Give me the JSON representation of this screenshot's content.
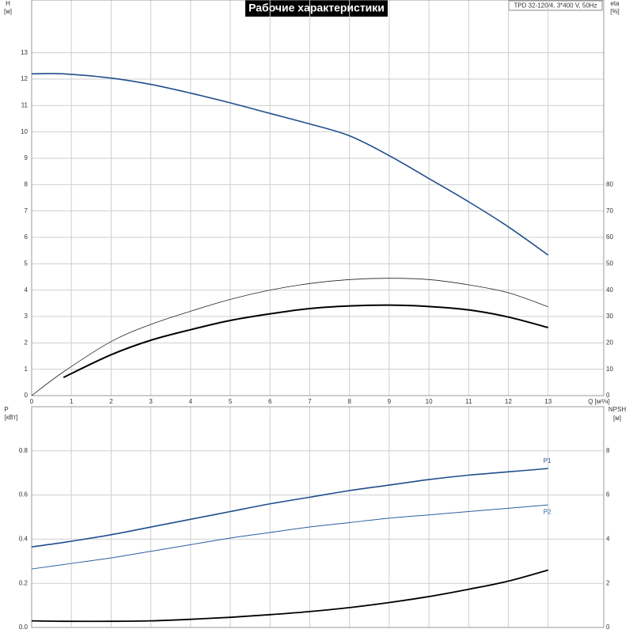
{
  "chart_data": [
    {
      "type": "line",
      "title": "Рабочие характеристики",
      "info": "TPD 32-120/4, 3*400 V, 50Hz",
      "y_label": "H",
      "y_unit": "[м]",
      "y2_label": "eta",
      "y2_unit": "[%]",
      "x_label": "Q [м³/ч]",
      "x": [
        0,
        0.8,
        2,
        3,
        4,
        5,
        6,
        7,
        8,
        9,
        10,
        11,
        12,
        13
      ],
      "xlim": [
        0,
        14.4
      ],
      "xticks": [
        0,
        1,
        2,
        3,
        4,
        5,
        6,
        7,
        8,
        9,
        10,
        11,
        12,
        13
      ],
      "ylim": [
        0,
        15
      ],
      "yticks": [
        0,
        1,
        2,
        3,
        4,
        5,
        6,
        7,
        8,
        9,
        10,
        11,
        12,
        13
      ],
      "y2lim": [
        0,
        150
      ],
      "y2ticks": [
        0,
        10,
        20,
        30,
        40,
        50,
        60,
        70,
        80
      ],
      "grid": true,
      "series": [
        {
          "color": "#1f4e8c",
          "values": [
            12.2,
            12.2,
            12.04,
            11.8,
            11.47,
            11.1,
            10.7,
            10.3,
            9.85,
            9.1,
            8.23,
            7.35,
            6.4,
            5.33
          ]
        },
        {
          "color": "#222222",
          "axis": "y2",
          "values": [
            0,
            9,
            20.5,
            27,
            32,
            36.5,
            40,
            42.5,
            44,
            44.5,
            44,
            42,
            39,
            33.7
          ]
        },
        {
          "color": "#000000",
          "axis": "y2",
          "values": [
            null,
            6.9,
            15.5,
            21,
            25,
            28.5,
            31,
            33,
            34,
            34.3,
            33.8,
            32.5,
            29.8,
            25.8
          ]
        }
      ]
    },
    {
      "type": "line",
      "y_label": "P",
      "y_unit": "[кВт]",
      "y2_label": "NPSH",
      "y2_unit": "[м]",
      "x": [
        0,
        0.8,
        2,
        3,
        4,
        5,
        6,
        7,
        8,
        9,
        10,
        11,
        12,
        13
      ],
      "xlim": [
        0,
        14.4
      ],
      "ylim": [
        0,
        1.0
      ],
      "yticks": [
        {
          "value": 0,
          "label": "0.0"
        },
        0.2,
        0.4,
        0.6,
        0.8
      ],
      "y2lim": [
        0,
        10
      ],
      "y2ticks": [
        0,
        2,
        4,
        6,
        8
      ],
      "grid": true,
      "series": [
        {
          "name": "P1",
          "color": "#1f4e8c",
          "values": [
            0.365,
            0.385,
            0.42,
            0.455,
            0.49,
            0.525,
            0.56,
            0.59,
            0.62,
            0.645,
            0.67,
            0.69,
            0.705,
            0.72
          ]
        },
        {
          "name": "P2",
          "color": "#2a5f9e",
          "values": [
            0.265,
            0.285,
            0.315,
            0.345,
            0.375,
            0.405,
            0.43,
            0.455,
            0.475,
            0.495,
            0.51,
            0.525,
            0.54,
            0.555
          ]
        },
        {
          "color": "#000000",
          "axis": "y2",
          "values": [
            0.3,
            0.28,
            0.28,
            0.3,
            0.37,
            0.46,
            0.58,
            0.72,
            0.9,
            1.13,
            1.4,
            1.73,
            2.1,
            2.6
          ]
        }
      ]
    }
  ]
}
